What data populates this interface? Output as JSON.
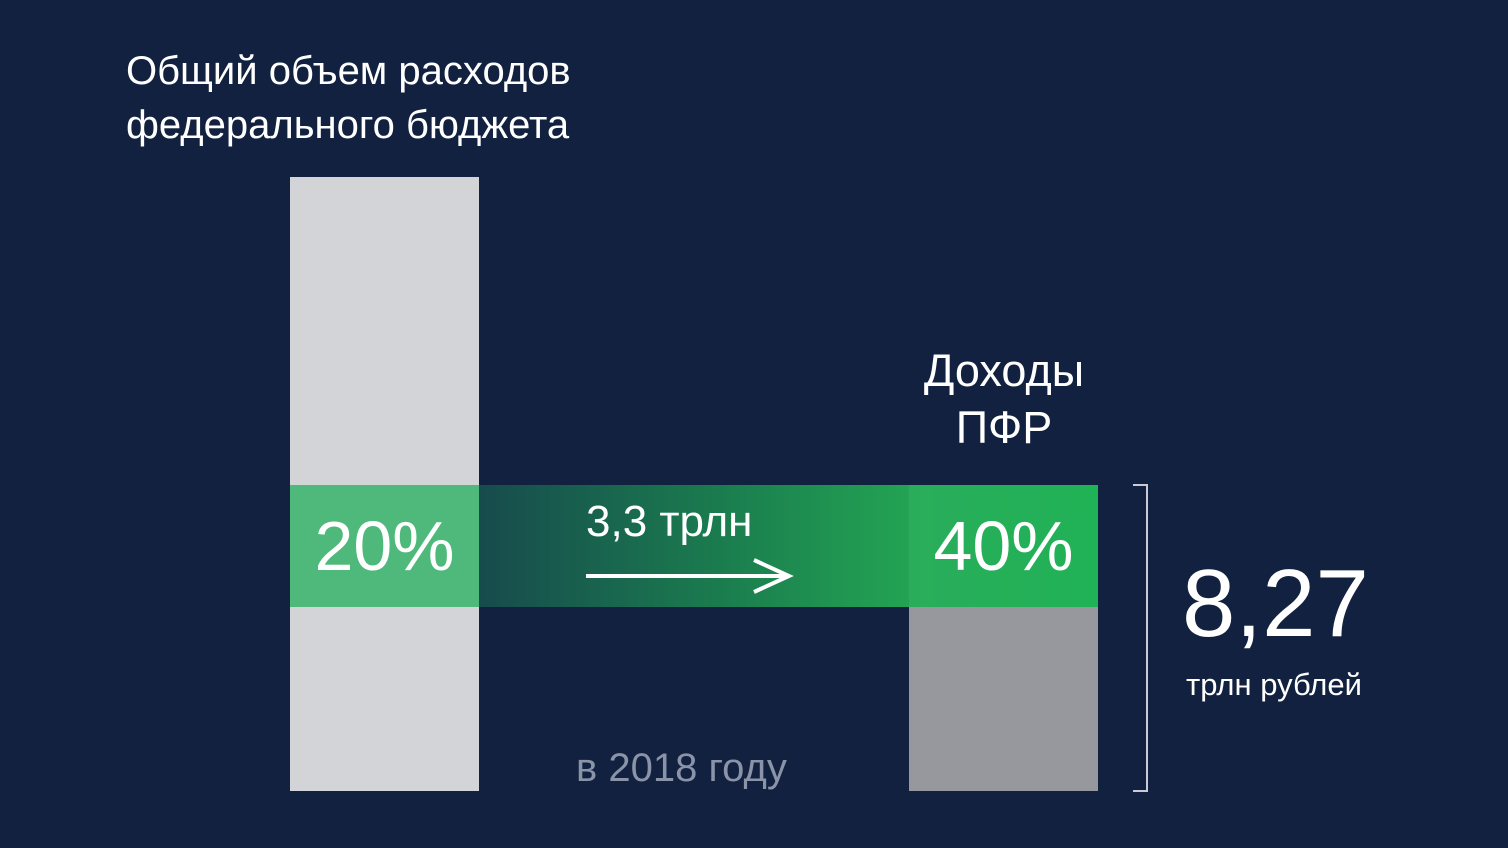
{
  "chart_data": {
    "type": "bar",
    "title_left": [
      "Общий объем расходов",
      "федерального бюджета"
    ],
    "title_right": [
      "Доходы",
      "ПФР"
    ],
    "bars": [
      {
        "name": "Общий объем расходов федерального бюджета",
        "highlight_share": 20,
        "highlight_label": "20%"
      },
      {
        "name": "Доходы ПФР",
        "highlight_share": 40,
        "highlight_label": "40%",
        "total_value": 8.27,
        "total_label": "8,27",
        "total_unit": "трлн рублей"
      }
    ],
    "flow": {
      "value": 3.3,
      "label": "3,3 трлн",
      "direction": "left-to-right"
    },
    "footnote": "в 2018 году",
    "colors": {
      "background": "#11213f",
      "bar_light": "#d3d4d8",
      "bar_gray": "#97989e",
      "highlight_green": "#4fb97b",
      "highlight_green_bright": "#20b256",
      "flow_dark": "#174b4d",
      "muted_text": "#8a93a8"
    }
  }
}
